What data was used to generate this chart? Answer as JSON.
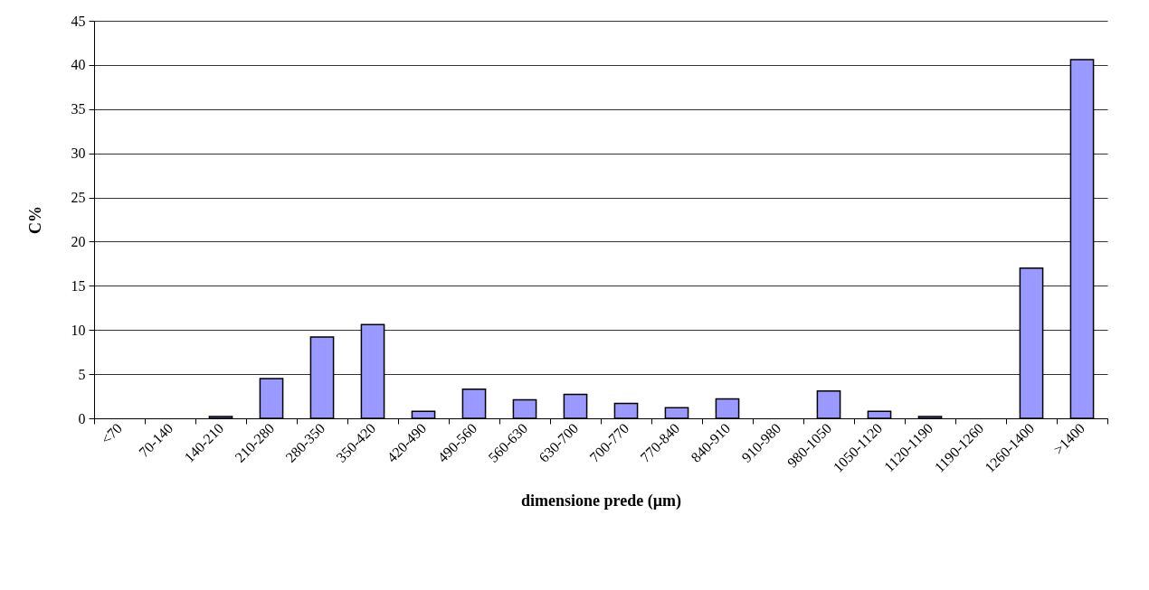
{
  "chart_data": {
    "type": "bar",
    "xlabel": "dimensione prede (µm)",
    "ylabel": "C%",
    "categories": [
      "<70",
      "70-140",
      "140-210",
      "210-280",
      "280-350",
      "350-420",
      "420-490",
      "490-560",
      "560-630",
      "630-700",
      "700-770",
      "770-840",
      "840-910",
      "910-980",
      "980-1050",
      "1050-1120",
      "1120-1190",
      "1190-1260",
      "1260-1400",
      ">1400"
    ],
    "values": [
      0,
      0,
      0.2,
      4.5,
      9.2,
      10.6,
      0.8,
      3.3,
      2.1,
      2.7,
      1.7,
      1.2,
      2.2,
      0,
      3.1,
      0.8,
      0.2,
      0,
      17.0,
      40.6
    ],
    "color": "#9999ff",
    "ylim": [
      0,
      45
    ],
    "yticks": [
      0,
      5,
      10,
      15,
      20,
      25,
      30,
      35,
      40,
      45
    ],
    "grid": "y"
  }
}
